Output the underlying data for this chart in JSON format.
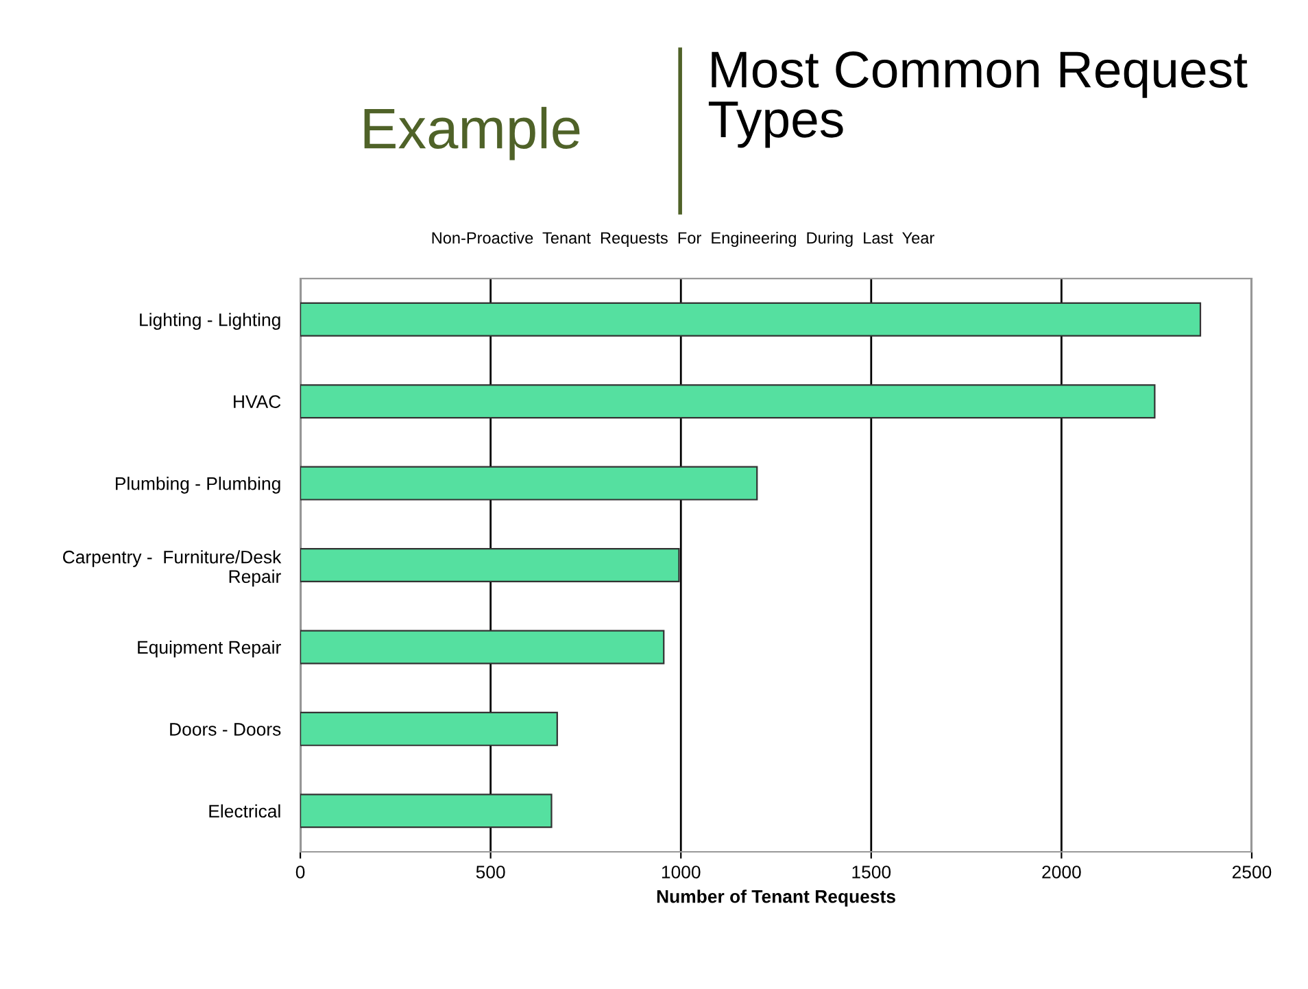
{
  "chart_data": {
    "type": "bar",
    "orientation": "horizontal",
    "title": "Most Common Request Types",
    "subtitle": "Non-Proactive  Tenant  Requests  For  Engineering  During  Last  Year",
    "annotations": [
      "Example"
    ],
    "xlabel": "Number of Tenant Requests",
    "categories": [
      "Lighting - Lighting",
      "HVAC",
      "Plumbing - Plumbing",
      "Carpentry -  Furniture/Desk\nRepair",
      "Equipment Repair",
      "Doors - Doors",
      "Electrical"
    ],
    "values": [
      2365,
      2245,
      1200,
      995,
      955,
      675,
      660
    ],
    "color": "#55e0a0",
    "xlim": [
      0,
      2500
    ],
    "xticks": [
      0,
      500,
      1000,
      1500,
      2000,
      2500
    ],
    "grid": "x",
    "legend": false
  }
}
